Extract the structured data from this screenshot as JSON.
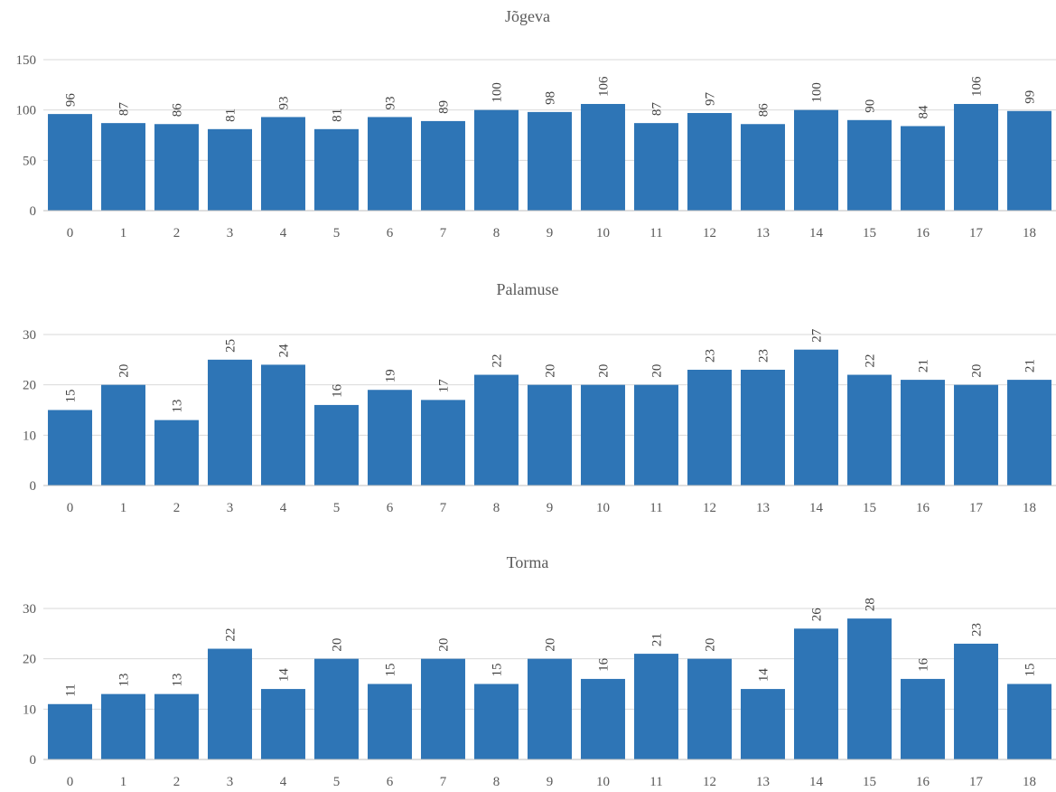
{
  "chart_data": [
    {
      "type": "bar",
      "title": "Jõgeva",
      "categories": [
        "0",
        "1",
        "2",
        "3",
        "4",
        "5",
        "6",
        "7",
        "8",
        "9",
        "10",
        "11",
        "12",
        "13",
        "14",
        "15",
        "16",
        "17",
        "18"
      ],
      "values": [
        96,
        87,
        86,
        81,
        93,
        81,
        93,
        89,
        100,
        98,
        106,
        87,
        97,
        86,
        100,
        90,
        84,
        106,
        99
      ],
      "ylim": [
        0,
        150
      ],
      "yticks": [
        "0",
        "50",
        "100",
        "150"
      ],
      "grid": true,
      "color": "#2e75b6"
    },
    {
      "type": "bar",
      "title": "Palamuse",
      "categories": [
        "0",
        "1",
        "2",
        "3",
        "4",
        "5",
        "6",
        "7",
        "8",
        "9",
        "10",
        "11",
        "12",
        "13",
        "14",
        "15",
        "16",
        "17",
        "18"
      ],
      "values": [
        15,
        20,
        13,
        25,
        24,
        16,
        19,
        17,
        22,
        20,
        20,
        20,
        23,
        23,
        27,
        22,
        21,
        20,
        21
      ],
      "ylim": [
        0,
        30
      ],
      "yticks": [
        "0",
        "10",
        "20",
        "30"
      ],
      "grid": true,
      "color": "#2e75b6"
    },
    {
      "type": "bar",
      "title": "Torma",
      "categories": [
        "0",
        "1",
        "2",
        "3",
        "4",
        "5",
        "6",
        "7",
        "8",
        "9",
        "10",
        "11",
        "12",
        "13",
        "14",
        "15",
        "16",
        "17",
        "18"
      ],
      "values": [
        11,
        13,
        13,
        22,
        14,
        20,
        15,
        20,
        15,
        20,
        16,
        21,
        20,
        14,
        26,
        28,
        16,
        23,
        15
      ],
      "ylim": [
        0,
        30
      ],
      "yticks": [
        "0",
        "10",
        "20",
        "30"
      ],
      "grid": true,
      "color": "#2e75b6"
    }
  ]
}
